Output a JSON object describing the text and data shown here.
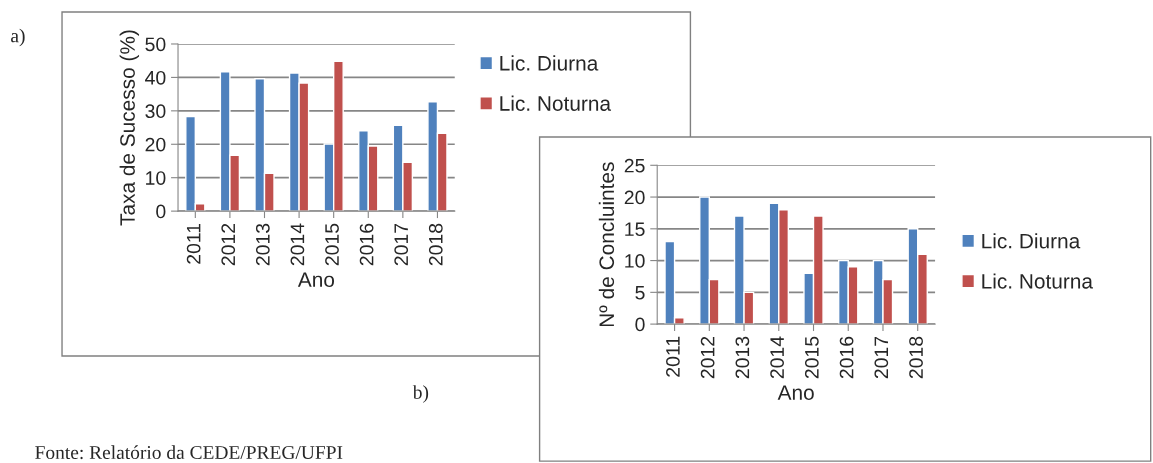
{
  "chart_data": [
    {
      "type": "bar",
      "categories": [
        "2011",
        "2012",
        "2013",
        "2014",
        "2015",
        "2016",
        "2017",
        "2018"
      ],
      "xlabel": "Ano",
      "ylabel": "Taxa de Sucesso (%)",
      "ylim": [
        0,
        50
      ],
      "yticks": [
        0,
        10,
        20,
        30,
        40,
        50
      ],
      "grid": "y",
      "legend": "right",
      "series": [
        {
          "name": "Lic. Diurna",
          "color": "#4f81bd",
          "values": [
            28.3,
            41.7,
            39.6,
            41.3,
            20.1,
            24,
            25.7,
            32.7
          ]
        },
        {
          "name": "Lic. Noturna",
          "color": "#c0504d",
          "values": [
            2.2,
            16.7,
            11.3,
            38.3,
            44.8,
            19.5,
            14.6,
            23.3
          ]
        }
      ],
      "annotations": [
        "a)",
        "Fonte: Relatório da CEDE/PREG/UFPI"
      ]
    },
    {
      "type": "bar",
      "categories": [
        "2011",
        "2012",
        "2013",
        "2014",
        "2015",
        "2016",
        "2017",
        "2018"
      ],
      "xlabel": "Ano",
      "ylabel": "Nº de Concluintes",
      "ylim": [
        0,
        25
      ],
      "yticks": [
        0,
        5,
        10,
        15,
        20,
        25
      ],
      "grid": "y",
      "legend": "right",
      "series": [
        {
          "name": "Lic. Diurna",
          "color": "#4f81bd",
          "values": [
            13,
            20,
            17,
            19,
            8,
            10,
            10,
            15
          ]
        },
        {
          "name": "Lic. Noturna",
          "color": "#c0504d",
          "values": [
            1,
            7,
            5,
            18,
            17,
            9,
            7,
            11
          ]
        }
      ],
      "annotations": [
        "b)"
      ]
    }
  ]
}
